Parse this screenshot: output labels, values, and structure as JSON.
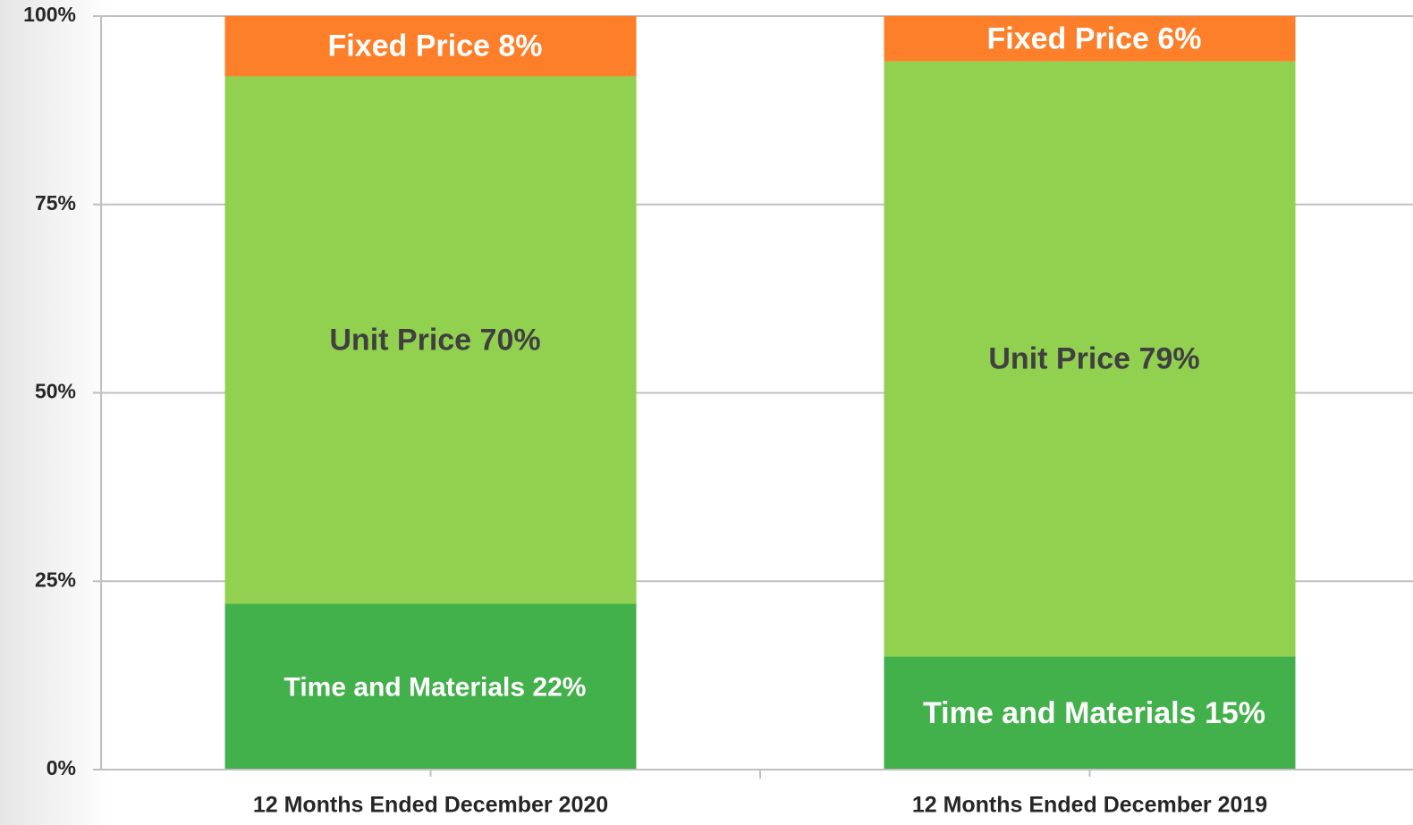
{
  "chart_data": {
    "type": "stacked_bar",
    "categories": [
      "12 Months Ended December 2020",
      "12 Months Ended December 2019"
    ],
    "series": [
      {
        "name": "Time and Materials",
        "color": "#43b14b",
        "label_color": "#ffffff",
        "values": [
          22,
          15
        ],
        "value_labels": [
          "22%",
          "15%"
        ]
      },
      {
        "name": "Unit Price",
        "color": "#92d150",
        "label_color": "#404040",
        "values": [
          70,
          79
        ],
        "value_labels": [
          "70%",
          "79%"
        ]
      },
      {
        "name": "Fixed Price",
        "color": "#fd7f2a",
        "label_color": "#ffffff",
        "values": [
          8,
          6
        ],
        "value_labels": [
          "8%",
          "6%"
        ]
      }
    ],
    "ylim": [
      0,
      100
    ],
    "yticks": [
      {
        "value": 0,
        "label": "0%"
      },
      {
        "value": 25,
        "label": "25%"
      },
      {
        "value": 50,
        "label": "50%"
      },
      {
        "value": 75,
        "label": "75%"
      },
      {
        "value": 100,
        "label": "100%"
      }
    ],
    "grid": true
  }
}
